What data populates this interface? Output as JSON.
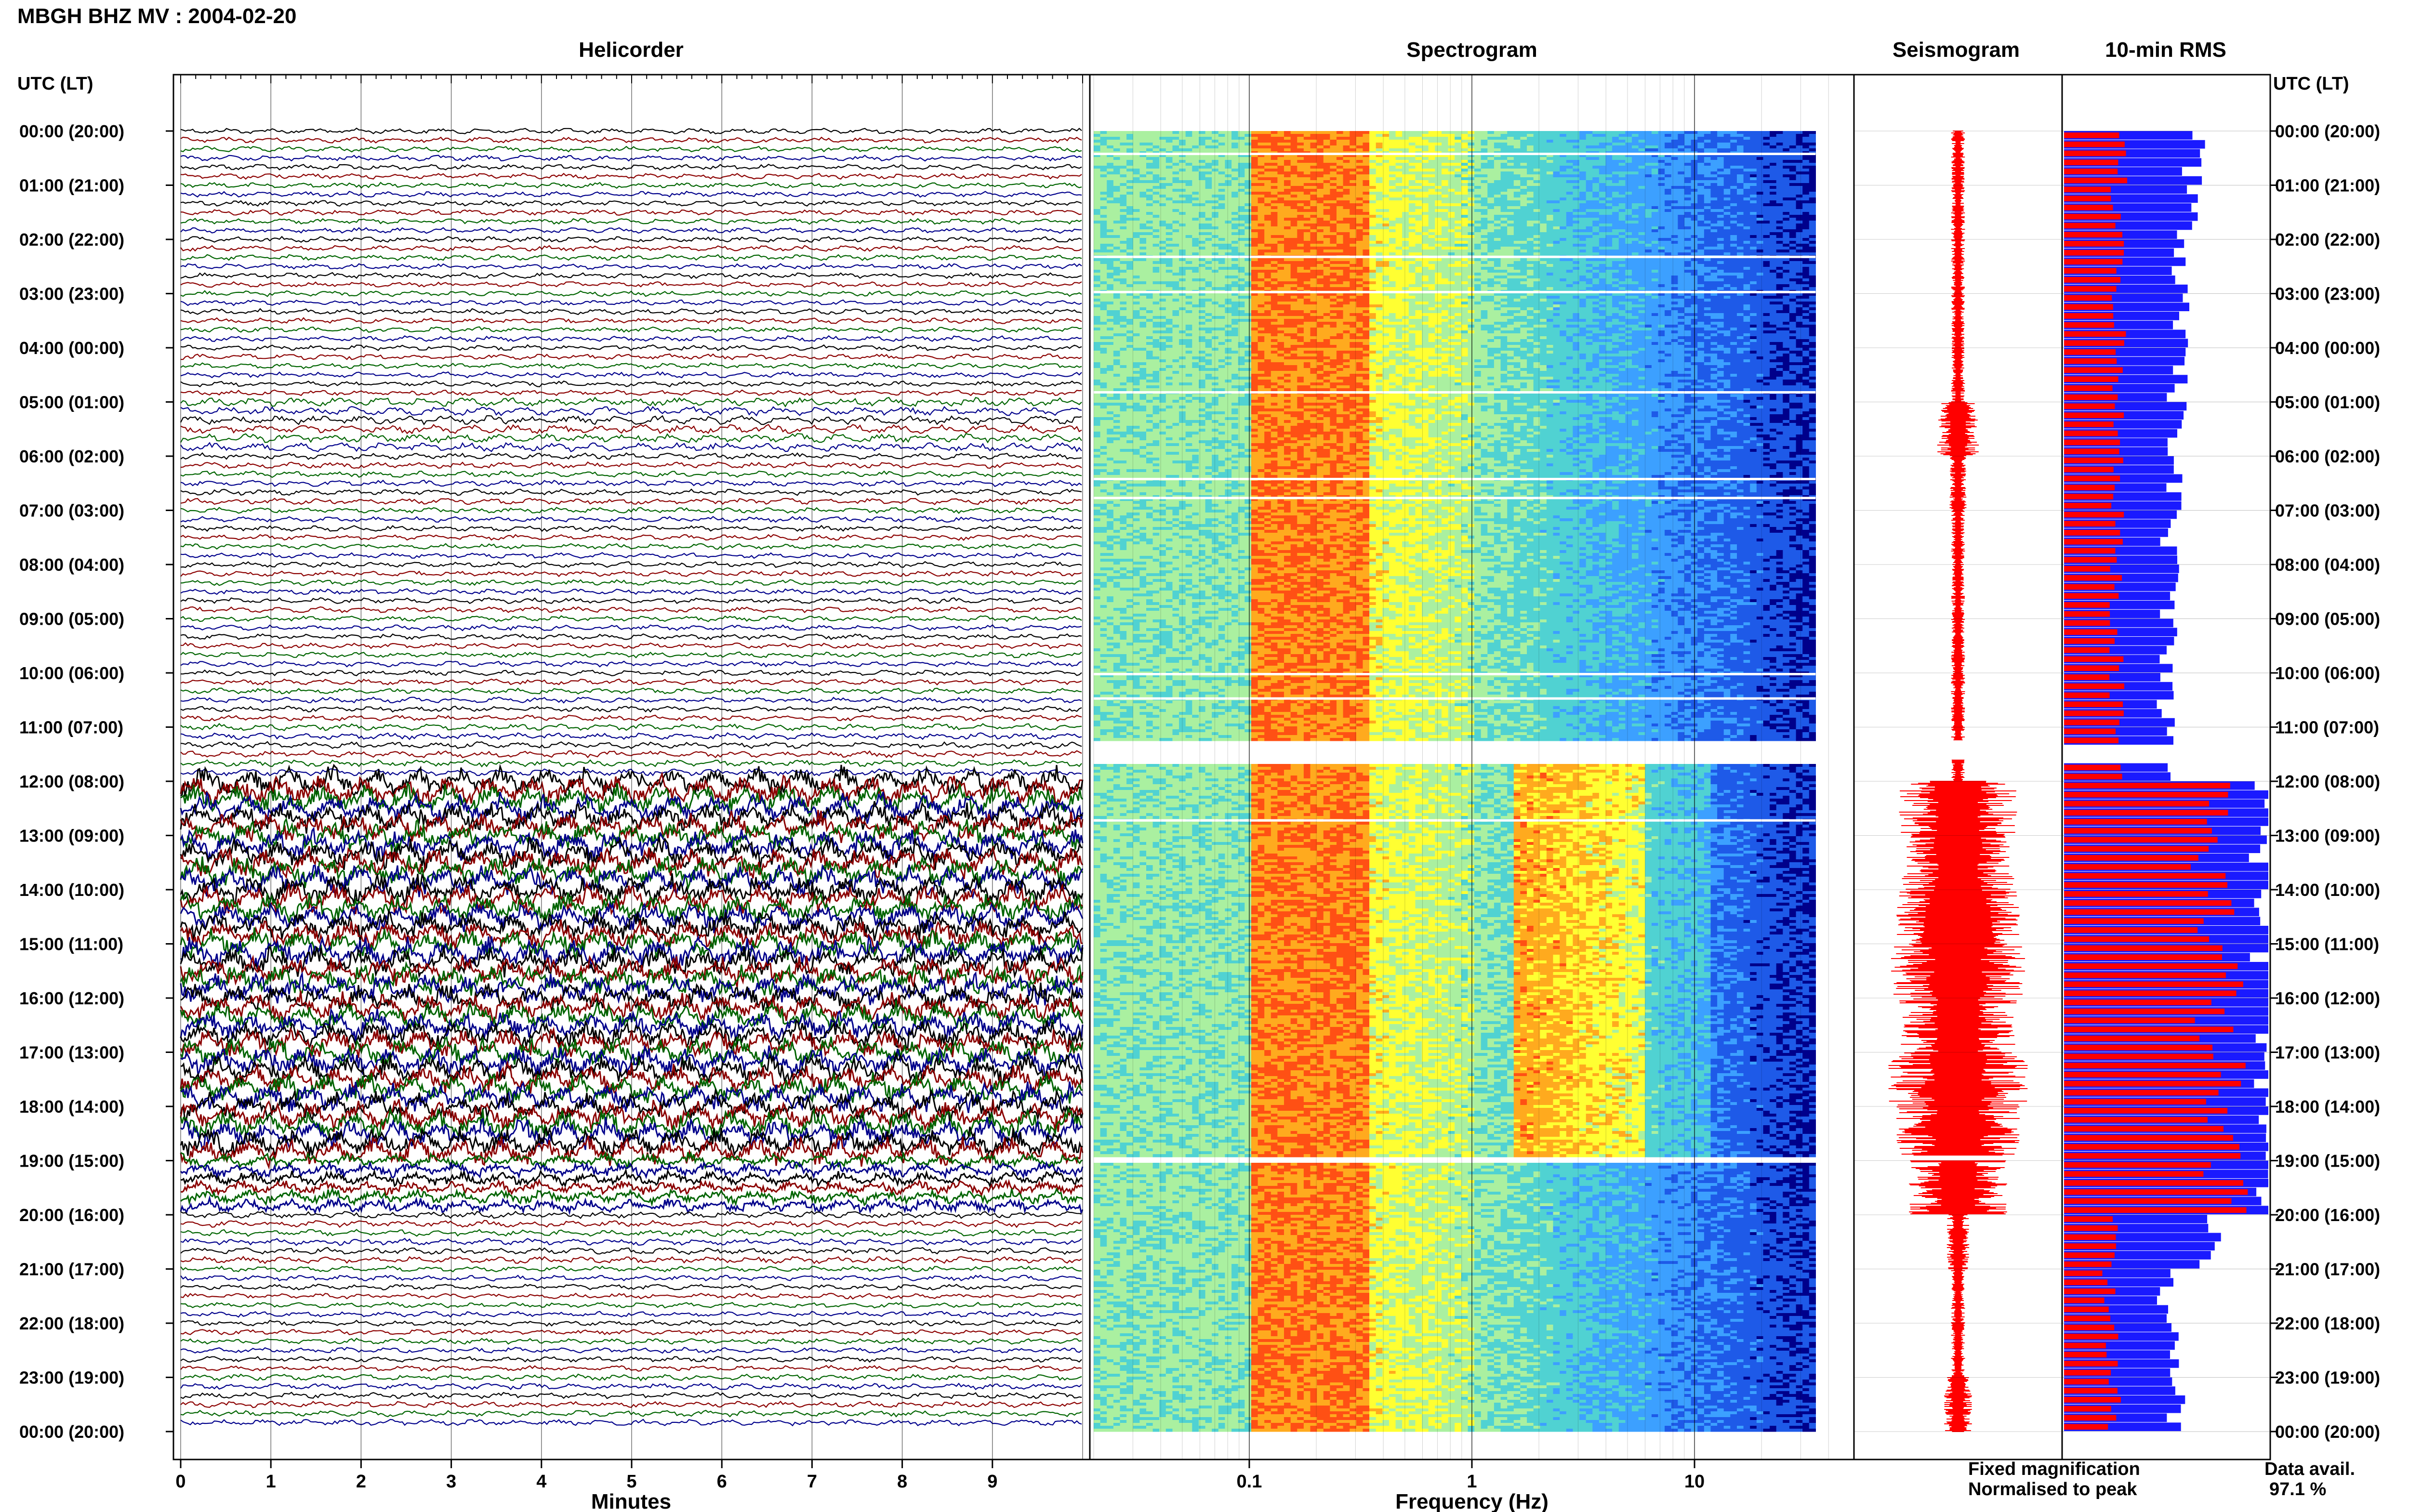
{
  "title": "MBGH BHZ MV : 2004-02-20",
  "panels": {
    "helicorder": "Helicorder",
    "spectrogram": "Spectrogram",
    "seismogram": "Seismogram",
    "rms": "10-min RMS"
  },
  "time_axis_label": "UTC (LT)",
  "time_labels": [
    "00:00 (20:00)",
    "01:00 (21:00)",
    "02:00 (22:00)",
    "03:00 (23:00)",
    "04:00 (00:00)",
    "05:00 (01:00)",
    "06:00 (02:00)",
    "07:00 (03:00)",
    "08:00 (04:00)",
    "09:00 (05:00)",
    "10:00 (06:00)",
    "11:00 (07:00)",
    "12:00 (08:00)",
    "13:00 (09:00)",
    "14:00 (10:00)",
    "15:00 (11:00)",
    "16:00 (12:00)",
    "17:00 (13:00)",
    "18:00 (14:00)",
    "19:00 (15:00)",
    "20:00 (16:00)",
    "21:00 (17:00)",
    "22:00 (18:00)",
    "23:00 (19:00)",
    "00:00 (20:00)"
  ],
  "legend": {
    "fixed": "Fixed magnification",
    "normalised": "Normalised to peak",
    "fixed_color": "#1a1aff",
    "normalised_color": "#ff0000"
  },
  "data_availability": {
    "label": "Data avail.",
    "value": "97.1 %"
  },
  "chart_data": [
    {
      "type": "line",
      "name": "Helicorder",
      "xlabel": "Minutes",
      "x_ticks": [
        "0",
        "1",
        "2",
        "3",
        "4",
        "5",
        "6",
        "7",
        "8",
        "9"
      ],
      "xlim": [
        0,
        10
      ],
      "trace_colors": [
        "#000000",
        "#8b0000",
        "#006400",
        "#00008b"
      ],
      "traces_per_hour": 6,
      "hours": 24,
      "amplitude_by_hour": [
        1,
        1,
        1,
        1,
        1,
        1.6,
        1.1,
        1,
        1,
        1,
        1,
        1.2,
        4.5,
        4.6,
        4.4,
        4.5,
        4.3,
        4.4,
        4.4,
        2.2,
        1.2,
        1,
        1,
        1.1
      ]
    },
    {
      "type": "heatmap",
      "name": "Spectrogram",
      "xlabel": "Frequency (Hz)",
      "x_scale": "log",
      "x_ticks": [
        "0.1",
        "1",
        "10"
      ],
      "xlim": [
        0.02,
        50
      ],
      "colors": [
        "#00008b",
        "#1e5ae8",
        "#3ca0ff",
        "#50d2d2",
        "#aaf0a0",
        "#ffff32",
        "#ffaa1e",
        "#ff5014"
      ]
    },
    {
      "type": "area",
      "name": "Seismogram",
      "color": "#ff0000",
      "relative_amplitude_by_hour": [
        0.05,
        0.05,
        0.05,
        0.05,
        0.05,
        0.15,
        0.06,
        0.05,
        0.05,
        0.05,
        0.05,
        0.05,
        0.42,
        0.4,
        0.45,
        0.48,
        0.42,
        0.5,
        0.44,
        0.35,
        0.08,
        0.05,
        0.05,
        0.1
      ]
    },
    {
      "type": "bar",
      "name": "10-min RMS",
      "series": [
        {
          "name": "Fixed magnification",
          "color": "#1a1aff",
          "values": [
            0.64,
            0.6,
            0.58,
            0.56,
            0.55,
            0.56,
            0.53,
            0.52,
            0.52,
            0.52,
            0.5,
            0.5,
            1.0,
            1.0,
            1.0,
            1.0,
            1.0,
            1.0,
            1.0,
            1.0,
            0.7,
            0.5,
            0.52,
            0.55
          ]
        },
        {
          "name": "Normalised to peak",
          "color": "#ff0000",
          "values": [
            0.27,
            0.26,
            0.26,
            0.27,
            0.26,
            0.28,
            0.27,
            0.26,
            0.26,
            0.26,
            0.26,
            0.27,
            0.75,
            0.72,
            0.75,
            0.78,
            0.74,
            0.78,
            0.76,
            0.8,
            0.25,
            0.22,
            0.24,
            0.25
          ]
        }
      ]
    }
  ]
}
